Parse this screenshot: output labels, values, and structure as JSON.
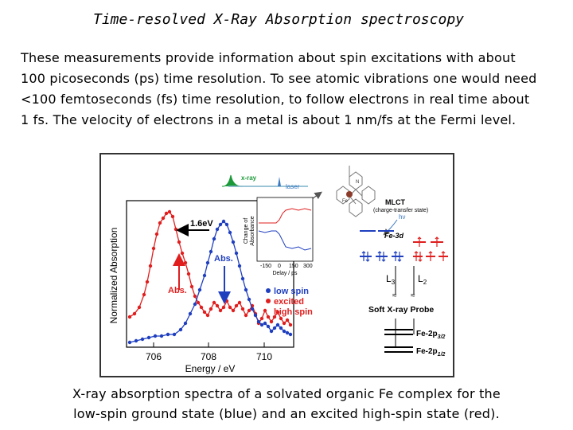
{
  "slide": {
    "title": "Time-resolved X-Ray Absorption spectroscopy",
    "paragraph_lines": [
      "These measurements provide information about spin excitations with about",
      "100 picoseconds (ps) time resolution. To see atomic vibrations one would need",
      "<100 femtoseconds (fs) time resolution, to follow electrons in real time about",
      "1 fs. The velocity of electrons in a metal is about 1 nm/fs  at the Fermi level."
    ],
    "caption_lines": [
      "X-ray absorption spectra of a solvated organic Fe complex for the",
      "low-spin ground state (blue) and an excited high-spin state (red)."
    ]
  },
  "figure": {
    "xlabel": "Energy / eV",
    "ylabel": "Normalized Absorption",
    "xticks": [
      "706",
      "708",
      "710"
    ],
    "arrow_16ev": "1.6eV",
    "abs_blue": "Abs.",
    "abs_red": "Abs.",
    "legend": {
      "low": "low spin",
      "excited": "excited",
      "high": "high spin"
    },
    "inset": {
      "xlabel": "Delay / ps",
      "ylabel_1": "Change of",
      "ylabel_2": "Absorbance",
      "xticks": [
        "-150",
        "0",
        "150",
        "300"
      ],
      "xray": "x-ray",
      "laser": "laser"
    },
    "diagram": {
      "mlct": "MLCT",
      "mlct_sub": "(charge-transfer state)",
      "hv": "hν",
      "fe3d": "Fe-3d",
      "l3": "L",
      "l3_sub": "3",
      "l2": "L",
      "l2_sub": "2",
      "approx": "≈",
      "probe": "Soft X-ray Probe",
      "fe2p32": "Fe-2p",
      "fe2p32_sub": "3/2",
      "fe2p12": "Fe-2p",
      "fe2p12_sub": "1/2",
      "fe_atom": "Fe",
      "n_atom": "N"
    },
    "colors": {
      "blue": "#1f3fbf",
      "red": "#e01e1e",
      "green": "#1c9a3a"
    }
  }
}
